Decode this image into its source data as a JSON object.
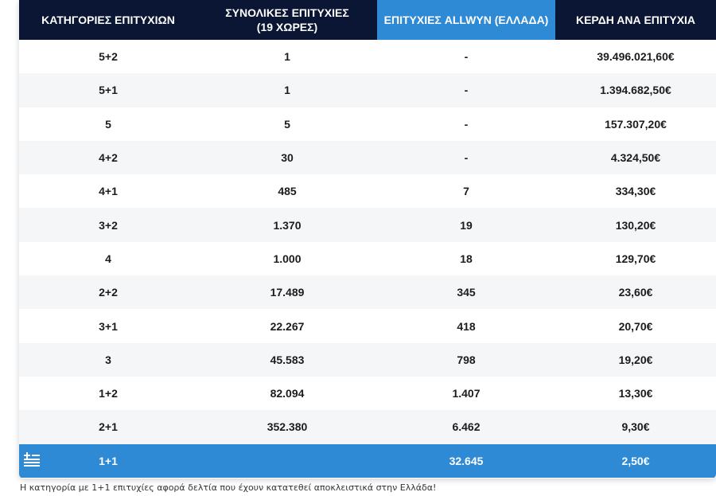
{
  "table": {
    "headers": [
      "ΚΑΤΗΓΟΡΙΕΣ ΕΠΙΤΥΧΙΩΝ",
      "ΣΥΝΟΛΙΚΕΣ ΕΠΙΤΥΧΙΕΣ\n(19 ΧΩΡΕΣ)",
      "ΕΠΙΤΥΧΙΕΣ ALLWYN (ΕΛΛΑΔΑ)",
      "ΚΕΡΔΗ ΑΝΑ ΕΠΙΤΥΧΙΑ"
    ],
    "highlight_color": "#2f8ad6",
    "header_color": "#0a1633",
    "rows": [
      [
        "5+2",
        "1",
        "-",
        "39.496.021,60€"
      ],
      [
        "5+1",
        "1",
        "-",
        "1.394.682,50€"
      ],
      [
        "5",
        "5",
        "-",
        "157.307,20€"
      ],
      [
        "4+2",
        "30",
        "-",
        "4.324,50€"
      ],
      [
        "4+1",
        "485",
        "7",
        "334,30€"
      ],
      [
        "3+2",
        "1.370",
        "19",
        "130,20€"
      ],
      [
        "4",
        "1.000",
        "18",
        "129,70€"
      ],
      [
        "2+2",
        "17.489",
        "345",
        "23,60€"
      ],
      [
        "3+1",
        "22.267",
        "418",
        "20,70€"
      ],
      [
        "3",
        "45.583",
        "798",
        "19,20€"
      ],
      [
        "1+2",
        "82.094",
        "1.407",
        "13,30€"
      ],
      [
        "2+1",
        "352.380",
        "6.462",
        "9,30€"
      ]
    ],
    "footer_row": {
      "icon": "greek-flag-icon",
      "category": "1+1",
      "total": "",
      "allwyn": "32.645",
      "prize": "2,50€"
    }
  },
  "note": "Η κατηγορία με 1+1 επιτυχίες αφορά δελτία που έχουν κατατεθεί αποκλειστικά στην Ελλάδα!"
}
